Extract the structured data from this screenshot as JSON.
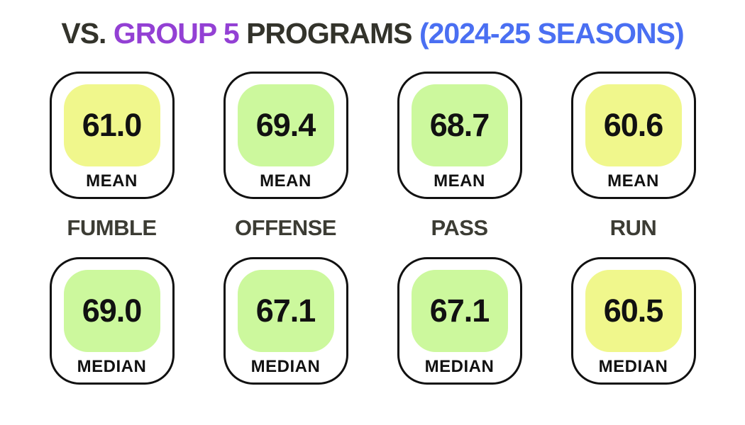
{
  "title": {
    "prefix": "VS.",
    "highlight": "GROUP 5",
    "middle": "PROGRAMS",
    "suffix": "(2024-25 SEASONS)"
  },
  "colors": {
    "title_dark": "#33332b",
    "title_purple": "#9340d4",
    "title_blue": "#4a6ff2",
    "metric_label": "#3c3c34",
    "card_border": "#111111",
    "fill_yellow": "#f0f78c",
    "fill_green": "#ccf89d"
  },
  "stat_labels": {
    "mean": "MEAN",
    "median": "MEDIAN"
  },
  "metrics": [
    {
      "name": "FUMBLE",
      "mean": "61.0",
      "median": "69.0",
      "mean_fill": "#f0f78c",
      "median_fill": "#ccf89d"
    },
    {
      "name": "OFFENSE",
      "mean": "69.4",
      "median": "67.1",
      "mean_fill": "#ccf89d",
      "median_fill": "#ccf89d"
    },
    {
      "name": "PASS",
      "mean": "68.7",
      "median": "67.1",
      "mean_fill": "#ccf89d",
      "median_fill": "#ccf89d"
    },
    {
      "name": "RUN",
      "mean": "60.6",
      "median": "60.5",
      "mean_fill": "#f0f78c",
      "median_fill": "#f0f78c"
    }
  ],
  "chart_data": {
    "type": "table",
    "title": "VS. GROUP 5 PROGRAMS (2024-25 SEASONS)",
    "categories": [
      "FUMBLE",
      "OFFENSE",
      "PASS",
      "RUN"
    ],
    "series": [
      {
        "name": "MEAN",
        "values": [
          61.0,
          69.4,
          68.7,
          60.6
        ]
      },
      {
        "name": "MEDIAN",
        "values": [
          69.0,
          67.1,
          67.1,
          60.5
        ]
      }
    ]
  }
}
